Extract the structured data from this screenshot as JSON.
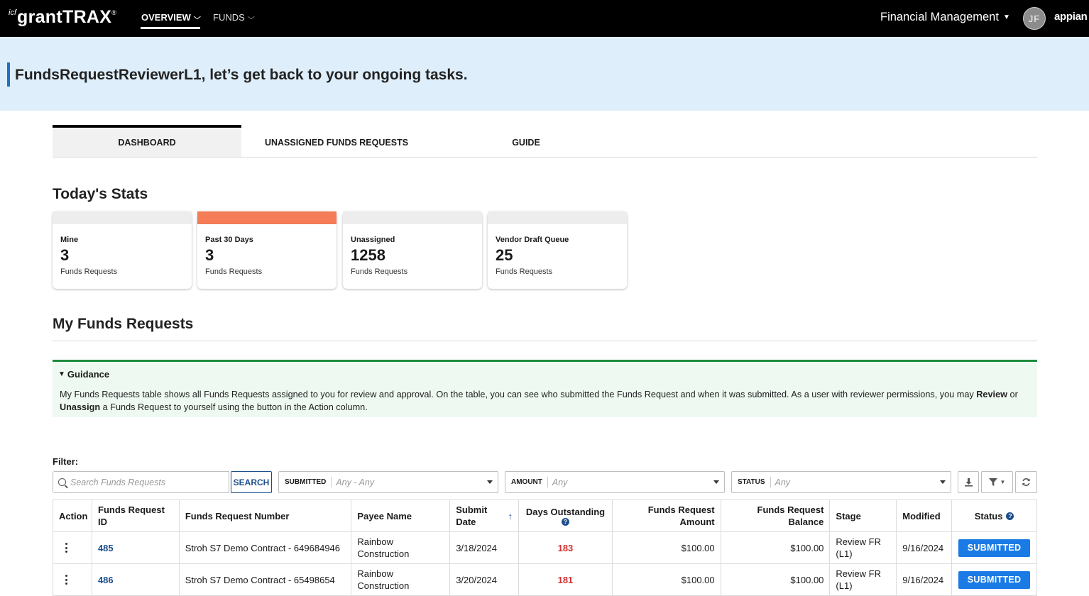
{
  "header": {
    "logo_prefix": "icf",
    "logo_name": "grantTRAX",
    "logo_tm": "®",
    "nav": [
      {
        "label": "OVERVIEW"
      },
      {
        "label": "FUNDS"
      }
    ],
    "app_menu_label": "Financial Management",
    "avatar_initials": "JF",
    "vendor_logo": "appian"
  },
  "banner": {
    "greeting": "FundsRequestReviewerL1, let’s get back to your ongoing tasks."
  },
  "tabs": [
    {
      "label": "DASHBOARD",
      "active": true
    },
    {
      "label": "UNASSIGNED FUNDS REQUESTS",
      "active": false
    },
    {
      "label": "GUIDE",
      "active": false
    }
  ],
  "stats": {
    "title": "Today's Stats",
    "cards": [
      {
        "label": "Mine",
        "value": "3",
        "sub": "Funds Requests",
        "highlight": false
      },
      {
        "label": "Past 30 Days",
        "value": "3",
        "sub": "Funds Requests",
        "highlight": true
      },
      {
        "label": "Unassigned",
        "value": "1258",
        "sub": "Funds Requests",
        "highlight": false
      },
      {
        "label": "Vendor Draft Queue",
        "value": "25",
        "sub": "Funds Requests",
        "highlight": false
      }
    ],
    "highlight_color": "#f47c56"
  },
  "my_requests": {
    "title": "My Funds Requests",
    "guidance": {
      "heading": "Guidance",
      "text_1": "My Funds Requests table shows all Funds Requests assigned to you for review and approval. On the table, you can see who submitted the Funds Request and when it was submitted. As a user with reviewer permissions, you may ",
      "bold_1": "Review",
      "text_2": " or ",
      "bold_2": "Unassign",
      "text_3": " a Funds Request to yourself using the button in the Action column."
    },
    "filter": {
      "label": "Filter:",
      "search_placeholder": "Search Funds Requests",
      "search_button": "SEARCH",
      "submitted_label": "SUBMITTED",
      "submitted_value": "Any - Any",
      "amount_label": "AMOUNT",
      "amount_value": "Any",
      "status_label": "STATUS",
      "status_value": "Any"
    },
    "table": {
      "headers": {
        "action": "Action",
        "id": "Funds Request ID",
        "number": "Funds Request Number",
        "payee": "Payee Name",
        "submit_date": "Submit Date",
        "days": "Days Outstanding",
        "amount": "Funds Request Amount",
        "balance": "Funds Request Balance",
        "stage": "Stage",
        "modified": "Modified",
        "status": "Status"
      },
      "rows": [
        {
          "id": "485",
          "number": "Stroh S7 Demo Contract - 649684946",
          "payee": "Rainbow Construction",
          "submit_date": "3/18/2024",
          "days": "183",
          "amount": "$100.00",
          "balance": "$100.00",
          "stage": "Review FR (L1)",
          "modified": "9/16/2024",
          "status": "SUBMITTED"
        },
        {
          "id": "486",
          "number": "Stroh S7 Demo Contract - 65498654",
          "payee": "Rainbow Construction",
          "submit_date": "3/20/2024",
          "days": "181",
          "amount": "$100.00",
          "balance": "$100.00",
          "stage": "Review FR (L1)",
          "modified": "9/16/2024",
          "status": "SUBMITTED"
        }
      ]
    }
  },
  "colors": {
    "accent_blue": "#1a7ae6",
    "link_blue": "#1e4e8c",
    "days_red": "#d32f2f",
    "guidance_green": "#1e8a3c",
    "banner_bg": "#deeefa"
  }
}
